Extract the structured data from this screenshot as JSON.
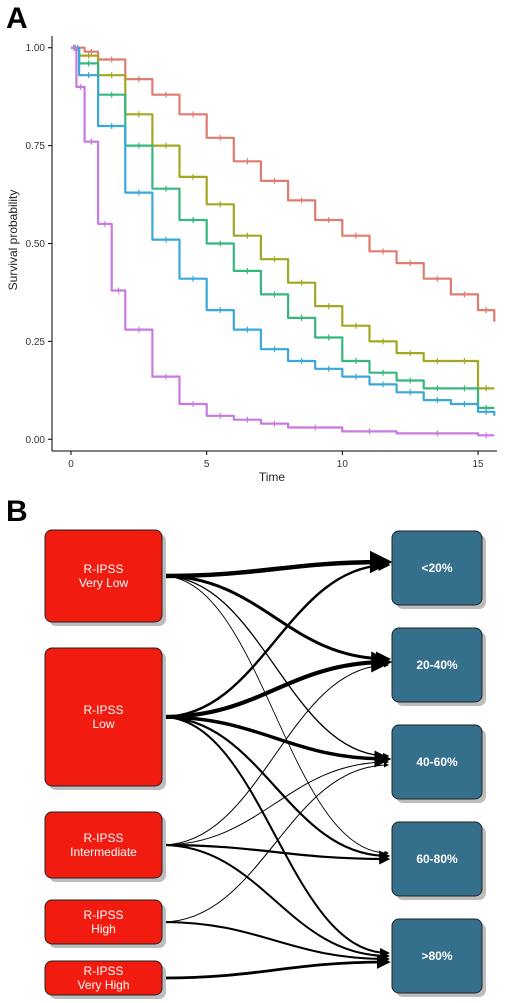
{
  "chart_data": [
    {
      "panel": "A",
      "type": "line",
      "xlabel": "Time",
      "ylabel": "Survival probability",
      "xlim": [
        -0.7,
        15.7
      ],
      "ylim": [
        -0.03,
        1.03
      ],
      "xticks": [
        0,
        5,
        10,
        15
      ],
      "yticks": [
        0.0,
        0.25,
        0.5,
        0.75,
        1.0
      ],
      "ytick_labels": [
        "0.00",
        "0.25",
        "0.50",
        "0.75",
        "1.00"
      ],
      "grid": false,
      "series": [
        {
          "color": "#e07b70",
          "x": [
            0,
            0.5,
            1,
            2,
            3,
            4,
            5,
            6,
            7,
            8,
            9,
            10,
            11,
            12,
            13,
            14,
            15,
            15.6
          ],
          "y": [
            1.0,
            0.99,
            0.97,
            0.92,
            0.88,
            0.83,
            0.77,
            0.71,
            0.66,
            0.61,
            0.56,
            0.52,
            0.48,
            0.45,
            0.41,
            0.37,
            0.33,
            0.3
          ]
        },
        {
          "color": "#a2a821",
          "x": [
            0,
            0.3,
            1,
            2,
            3,
            4,
            5,
            6,
            7,
            8,
            9,
            10,
            11,
            12,
            13,
            14,
            15,
            15.6
          ],
          "y": [
            1.0,
            0.98,
            0.93,
            0.83,
            0.75,
            0.67,
            0.6,
            0.52,
            0.46,
            0.4,
            0.34,
            0.29,
            0.25,
            0.22,
            0.2,
            0.2,
            0.13,
            0.13
          ]
        },
        {
          "color": "#35b77f",
          "x": [
            0,
            0.3,
            1,
            2,
            3,
            4,
            5,
            6,
            7,
            8,
            9,
            10,
            11,
            12,
            13,
            14,
            15,
            15.6
          ],
          "y": [
            1.0,
            0.96,
            0.88,
            0.75,
            0.64,
            0.56,
            0.5,
            0.43,
            0.37,
            0.31,
            0.26,
            0.2,
            0.17,
            0.15,
            0.13,
            0.13,
            0.08,
            0.08
          ]
        },
        {
          "color": "#3aa8d8",
          "x": [
            0,
            0.3,
            1,
            2,
            3,
            4,
            5,
            6,
            7,
            8,
            9,
            10,
            11,
            12,
            13,
            14,
            15,
            15.6
          ],
          "y": [
            1.0,
            0.93,
            0.8,
            0.63,
            0.51,
            0.41,
            0.33,
            0.28,
            0.23,
            0.2,
            0.18,
            0.16,
            0.14,
            0.12,
            0.1,
            0.09,
            0.07,
            0.06
          ]
        },
        {
          "color": "#c97ae0",
          "x": [
            0,
            0.2,
            0.5,
            1,
            1.5,
            2,
            3,
            4,
            5,
            6,
            7,
            8,
            10,
            12,
            15,
            15.6
          ],
          "y": [
            1.0,
            0.9,
            0.76,
            0.55,
            0.38,
            0.28,
            0.16,
            0.09,
            0.06,
            0.05,
            0.04,
            0.03,
            0.02,
            0.015,
            0.01,
            0.01
          ]
        }
      ]
    },
    {
      "panel": "B",
      "type": "diagram",
      "source_nodes": [
        {
          "id": "s0",
          "lines": [
            "R-IPSS",
            "Very Low"
          ]
        },
        {
          "id": "s1",
          "lines": [
            "R-IPSS",
            "Low"
          ]
        },
        {
          "id": "s2",
          "lines": [
            "R-IPSS",
            "Intermediate"
          ]
        },
        {
          "id": "s3",
          "lines": [
            "R-IPSS",
            "High"
          ]
        },
        {
          "id": "s4",
          "lines": [
            "R-IPSS",
            "Very High"
          ]
        }
      ],
      "target_nodes": [
        {
          "id": "t0",
          "label": "<20%"
        },
        {
          "id": "t1",
          "label": "20-40%"
        },
        {
          "id": "t2",
          "label": "40-60%"
        },
        {
          "id": "t3",
          "label": "60-80%"
        },
        {
          "id": "t4",
          "label": ">80%"
        }
      ],
      "links": [
        {
          "from": 0,
          "to": 0,
          "weight": 4.5
        },
        {
          "from": 0,
          "to": 1,
          "weight": 3
        },
        {
          "from": 0,
          "to": 2,
          "weight": 1.3
        },
        {
          "from": 0,
          "to": 3,
          "weight": 0.9
        },
        {
          "from": 1,
          "to": 0,
          "weight": 2.4
        },
        {
          "from": 1,
          "to": 1,
          "weight": 4.2
        },
        {
          "from": 1,
          "to": 2,
          "weight": 3.4
        },
        {
          "from": 1,
          "to": 3,
          "weight": 2.2
        },
        {
          "from": 1,
          "to": 4,
          "weight": 2
        },
        {
          "from": 2,
          "to": 1,
          "weight": 1
        },
        {
          "from": 2,
          "to": 2,
          "weight": 1
        },
        {
          "from": 2,
          "to": 3,
          "weight": 2.2
        },
        {
          "from": 2,
          "to": 4,
          "weight": 2
        },
        {
          "from": 3,
          "to": 2,
          "weight": 1
        },
        {
          "from": 3,
          "to": 4,
          "weight": 2
        },
        {
          "from": 4,
          "to": 4,
          "weight": 2.8
        }
      ]
    }
  ],
  "colors": {
    "source_fill": "#f21b10",
    "target_fill": "#346f8b",
    "node_shadow": "#bdbdbd",
    "link": "#000000"
  }
}
